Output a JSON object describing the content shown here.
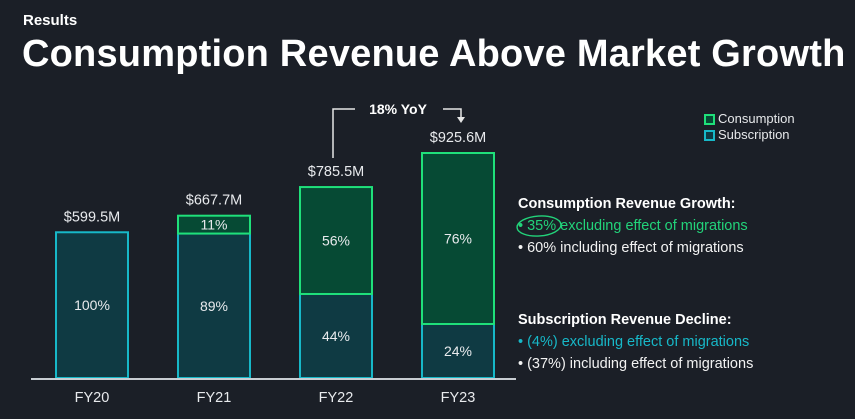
{
  "header": {
    "kicker": "Results",
    "title": "Consumption Revenue Above Market Growth"
  },
  "legend": [
    {
      "label": "Consumption",
      "color": "#1fe07a"
    },
    {
      "label": "Subscription",
      "color": "#17b8c8"
    }
  ],
  "annotation": {
    "label": "18% YoY",
    "from": "FY22",
    "to": "FY23"
  },
  "chart_data": {
    "type": "bar",
    "stacked": true,
    "title": "Consumption Revenue Above Market Growth",
    "xlabel": "",
    "ylabel": "",
    "categories": [
      "FY20",
      "FY21",
      "FY22",
      "FY23"
    ],
    "totals": [
      599.5,
      667.7,
      785.5,
      925.6
    ],
    "total_labels": [
      "$599.5M",
      "$667.7M",
      "$785.5M",
      "$925.6M"
    ],
    "series": [
      {
        "name": "Subscription",
        "values": [
          100,
          89,
          44,
          24
        ],
        "labels": [
          "100%",
          "89%",
          "44%",
          "24%"
        ],
        "unit": "% of total"
      },
      {
        "name": "Consumption",
        "values": [
          0,
          11,
          56,
          76
        ],
        "labels": [
          "",
          "11%",
          "56%",
          "76%"
        ],
        "unit": "% of total"
      }
    ],
    "ylim": [
      0,
      1000
    ],
    "grid": false,
    "legend_position": "top-right",
    "colors": {
      "consumption_fill": "#064a34",
      "consumption_stroke": "#1fe07a",
      "subscription_fill": "#0f3a43",
      "subscription_stroke": "#17b8c8",
      "axis": "#c8cdd2"
    }
  },
  "panel": {
    "consumption": {
      "heading": "Consumption Revenue Growth:",
      "bullets": [
        {
          "text": "• 35% excluding effect of migrations",
          "color": "green",
          "circled": "35%"
        },
        {
          "text": "• 60% including effect of migrations",
          "color": "white"
        }
      ]
    },
    "subscription": {
      "heading": "Subscription Revenue Decline:",
      "bullets": [
        {
          "text": "• (4%) excluding effect of migrations",
          "color": "teal"
        },
        {
          "text": "• (37%) including effect of migrations",
          "color": "white"
        }
      ]
    }
  }
}
